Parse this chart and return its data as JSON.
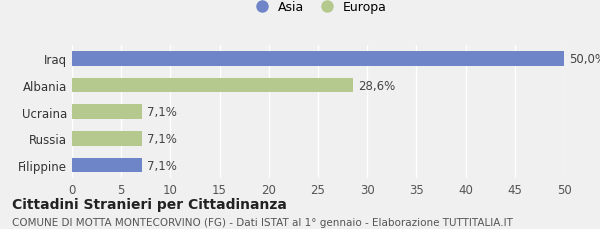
{
  "categories": [
    "Iraq",
    "Albania",
    "Ucraina",
    "Russia",
    "Filippine"
  ],
  "values": [
    50.0,
    28.6,
    7.1,
    7.1,
    7.1
  ],
  "labels": [
    "50,0%",
    "28,6%",
    "7,1%",
    "7,1%",
    "7,1%"
  ],
  "colors": [
    "#6e86c8",
    "#b5c98e",
    "#b5c98e",
    "#b5c98e",
    "#6e86c8"
  ],
  "legend_items": [
    {
      "label": "Asia",
      "color": "#6e86c8"
    },
    {
      "label": "Europa",
      "color": "#b5c98e"
    }
  ],
  "xlim": [
    0,
    50
  ],
  "xticks": [
    0,
    5,
    10,
    15,
    20,
    25,
    30,
    35,
    40,
    45,
    50
  ],
  "title": "Cittadini Stranieri per Cittadinanza",
  "subtitle": "COMUNE DI MOTTA MONTECORVINO (FG) - Dati ISTAT al 1° gennaio - Elaborazione TUTTITALIA.IT",
  "background_color": "#f0f0f0",
  "bar_height": 0.55,
  "title_fontsize": 10,
  "subtitle_fontsize": 7.5,
  "tick_fontsize": 8.5,
  "label_fontsize": 8.5
}
